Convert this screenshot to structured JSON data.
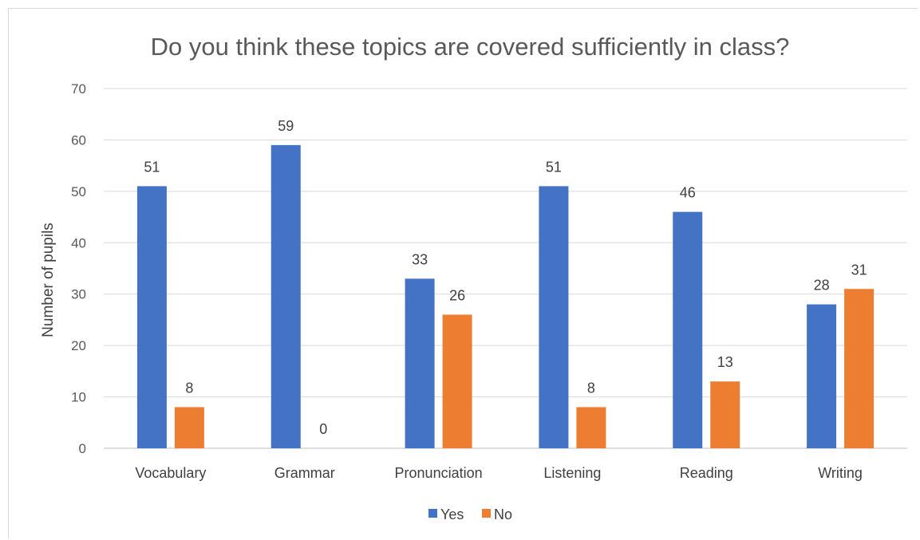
{
  "chart_data": {
    "type": "bar",
    "title": "Do you think these topics are covered sufficiently in class?",
    "xlabel": "",
    "ylabel": "Number of pupils",
    "ylim": [
      0,
      70
    ],
    "yticks": [
      0,
      10,
      20,
      30,
      40,
      50,
      60,
      70
    ],
    "grid": true,
    "legend_position": "bottom",
    "categories": [
      "Vocabulary",
      "Grammar",
      "Pronunciation",
      "Listening",
      "Reading",
      "Writing"
    ],
    "series": [
      {
        "name": "Yes",
        "color": "#4472c4",
        "values": [
          51,
          59,
          33,
          51,
          46,
          28
        ]
      },
      {
        "name": "No",
        "color": "#ed7d31",
        "values": [
          8,
          0,
          26,
          8,
          13,
          31
        ]
      }
    ]
  }
}
